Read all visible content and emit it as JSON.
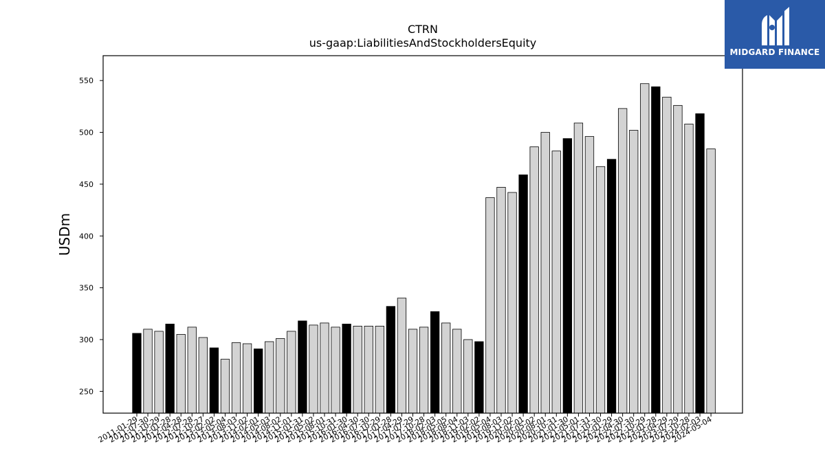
{
  "brand": {
    "name": "MIDGARD FINANCE",
    "bg_color": "#2a5aa8",
    "icon": "midgard-m-logo-icon"
  },
  "chart_data": {
    "type": "bar",
    "title": "CTRN",
    "subtitle": "us-gaap:LiabilitiesAndStockholdersEquity",
    "xlabel": "",
    "ylabel": "USDm",
    "ylim": [
      229,
      574
    ],
    "yticks": [
      250,
      300,
      350,
      400,
      450,
      500,
      550
    ],
    "grid": false,
    "legend": "none",
    "colors": {
      "fiscal_year_end": "#000000",
      "quarter": "#d3d3d3",
      "edge": "#000000"
    },
    "categories": [
      "2011-01-29",
      "2011-07-30",
      "2011-10-29",
      "2012-01-28",
      "2012-04-28",
      "2012-07-28",
      "2012-10-27",
      "2013-02-02",
      "2013-05-04",
      "2013-08-03",
      "2013-11-02",
      "2014-02-01",
      "2014-05-03",
      "2014-08-02",
      "2014-11-01",
      "2015-01-31",
      "2015-05-02",
      "2015-08-01",
      "2015-10-31",
      "2016-01-30",
      "2016-04-30",
      "2016-07-30",
      "2016-10-29",
      "2017-01-28",
      "2017-04-29",
      "2017-07-29",
      "2017-10-28",
      "2018-02-03",
      "2018-05-05",
      "2018-08-04",
      "2018-11-03",
      "2019-02-02",
      "2019-05-04",
      "2019-08-03",
      "2019-11-02",
      "2020-02-01",
      "2020-05-02",
      "2020-08-01",
      "2020-10-31",
      "2021-01-30",
      "2021-05-01",
      "2021-07-31",
      "2021-10-30",
      "2022-01-29",
      "2022-04-30",
      "2022-07-30",
      "2022-10-29",
      "2023-01-28",
      "2023-04-29",
      "2023-07-29",
      "2023-10-28",
      "2024-02-03",
      "2024-05-04"
    ],
    "values": [
      306,
      310,
      308,
      315,
      305,
      312,
      302,
      292,
      281,
      297,
      296,
      291,
      298,
      301,
      308,
      318,
      314,
      316,
      312,
      315,
      313,
      313,
      313,
      332,
      340,
      310,
      312,
      327,
      316,
      310,
      300,
      298,
      437,
      447,
      442,
      459,
      486,
      500,
      482,
      494,
      509,
      496,
      467,
      474,
      523,
      502,
      547,
      544,
      534,
      526,
      508,
      518,
      484
    ],
    "highlight": [
      true,
      false,
      false,
      true,
      false,
      false,
      false,
      true,
      false,
      false,
      false,
      true,
      false,
      false,
      false,
      true,
      false,
      false,
      false,
      true,
      false,
      false,
      false,
      true,
      false,
      false,
      false,
      true,
      false,
      false,
      false,
      true,
      false,
      false,
      false,
      true,
      false,
      false,
      false,
      true,
      false,
      false,
      false,
      true,
      false,
      false,
      false,
      true,
      false,
      false,
      false,
      true,
      false
    ]
  }
}
